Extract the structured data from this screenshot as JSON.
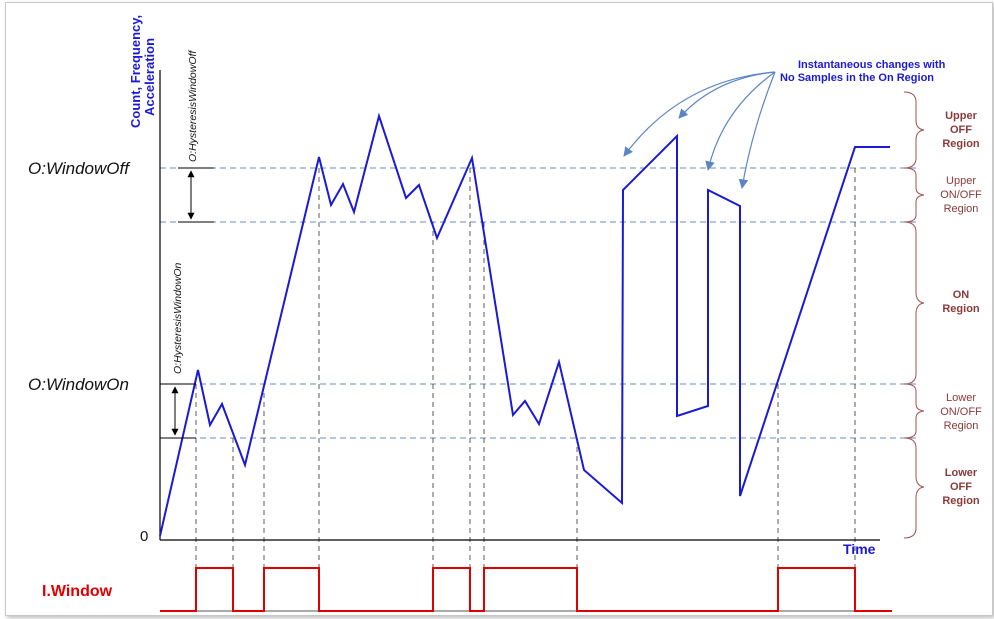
{
  "axes": {
    "y_title_lines": [
      "Count, Frequency,",
      "Acceleration"
    ],
    "x_title": "Time",
    "origin_label": "0"
  },
  "thresholds": {
    "window_off_label": "O:WindowOff",
    "window_on_label": "O:WindowOn",
    "hysteresis_off_label": "O:HysteresisWindowOff",
    "hysteresis_on_label": "O:HysteresisWindowOn"
  },
  "annotation": {
    "lines": [
      "Instantaneous changes with",
      "No Samples in the On Region"
    ]
  },
  "regions": [
    {
      "lines": [
        "Upper",
        "OFF",
        "Region"
      ],
      "bold": true
    },
    {
      "lines": [
        "Upper",
        "ON/OFF",
        "Region"
      ],
      "bold": false
    },
    {
      "lines": [
        "ON",
        "Region"
      ],
      "bold": true
    },
    {
      "lines": [
        "Lower",
        "ON/OFF",
        "Region"
      ],
      "bold": false
    },
    {
      "lines": [
        "Lower",
        "OFF",
        "Region"
      ],
      "bold": true
    }
  ],
  "output": {
    "label": "I.Window"
  },
  "colors": {
    "signal": "#1a1ad6",
    "output": "#e00000",
    "threshold_lines": "#6a8cbf",
    "region_brace": "#a05050",
    "annotation_arrows": "#5b86c5"
  }
}
